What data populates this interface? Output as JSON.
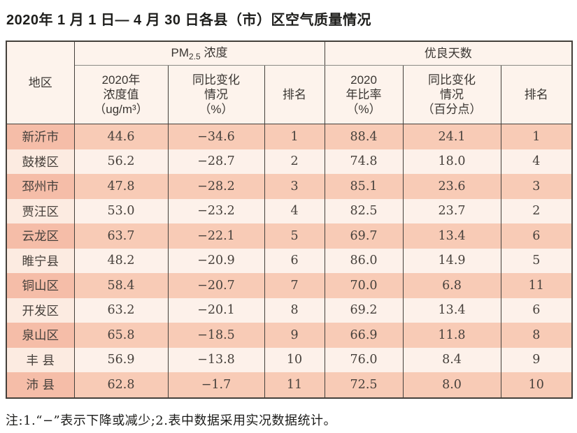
{
  "page": {
    "title": "2020年 1 月 1 日— 4 月 30 日各县（市）区空气质量情况",
    "footnote": "注:1.“−”表示下降或减少;2.表中数据采用实况数据统计。"
  },
  "table": {
    "region_header": "地区",
    "group_headers": {
      "pm25_prefix": "PM",
      "pm25_sub": "2.5",
      "pm25_suffix": " 浓度",
      "good_days": "优良天数"
    },
    "sub_headers": {
      "pm_value": "2020年\n浓度值\n（ug/m³）",
      "pm_change": "同比变化\n情况\n（%）",
      "pm_rank": "排名",
      "good_rate": "2020\n年比率\n（%）",
      "good_change": "同比变化\n情况\n（百分点）",
      "good_rank": "排名"
    },
    "rows": [
      {
        "region": "新沂市",
        "pm_value": "44.6",
        "pm_change": "−34.6",
        "pm_rank": "1",
        "good_rate": "88.4",
        "good_change": "24.1",
        "good_rank": "1"
      },
      {
        "region": "鼓楼区",
        "pm_value": "56.2",
        "pm_change": "−28.7",
        "pm_rank": "2",
        "good_rate": "74.8",
        "good_change": "18.0",
        "good_rank": "4"
      },
      {
        "region": "邳州市",
        "pm_value": "47.8",
        "pm_change": "−28.2",
        "pm_rank": "3",
        "good_rate": "85.1",
        "good_change": "23.6",
        "good_rank": "3"
      },
      {
        "region": "贾汪区",
        "pm_value": "53.0",
        "pm_change": "−23.2",
        "pm_rank": "4",
        "good_rate": "82.5",
        "good_change": "23.7",
        "good_rank": "2"
      },
      {
        "region": "云龙区",
        "pm_value": "63.7",
        "pm_change": "−22.1",
        "pm_rank": "5",
        "good_rate": "69.7",
        "good_change": "13.4",
        "good_rank": "6"
      },
      {
        "region": "睢宁县",
        "pm_value": "48.2",
        "pm_change": "−20.9",
        "pm_rank": "6",
        "good_rate": "86.0",
        "good_change": "14.9",
        "good_rank": "5"
      },
      {
        "region": "铜山区",
        "pm_value": "58.4",
        "pm_change": "−20.7",
        "pm_rank": "7",
        "good_rate": "70.0",
        "good_change": "6.8",
        "good_rank": "11"
      },
      {
        "region": "开发区",
        "pm_value": "63.2",
        "pm_change": "−20.1",
        "pm_rank": "8",
        "good_rate": "69.2",
        "good_change": "13.4",
        "good_rank": "6"
      },
      {
        "region": "泉山区",
        "pm_value": "65.8",
        "pm_change": "−18.5",
        "pm_rank": "9",
        "good_rate": "66.9",
        "good_change": "11.8",
        "good_rank": "8"
      },
      {
        "region": "丰 县",
        "pm_value": "56.9",
        "pm_change": "−13.8",
        "pm_rank": "10",
        "good_rate": "76.0",
        "good_change": "8.4",
        "good_rank": "9"
      },
      {
        "region": "沛 县",
        "pm_value": "62.8",
        "pm_change": "−1.7",
        "pm_rank": "11",
        "good_rate": "72.5",
        "good_change": "8.0",
        "good_rank": "10"
      }
    ],
    "colors": {
      "row_odd": "#f8cbb6",
      "row_even": "#fdf1ea",
      "region_odd": "#f5bda8",
      "region_even": "#fcebe1",
      "header_bg": "#fdf3ec",
      "border": "#44403b"
    }
  },
  "chart_data": {
    "type": "table",
    "title": "2020年1月1日—4月30日各县（市）区空气质量情况",
    "column_groups": [
      "地区",
      "PM2.5浓度",
      "优良天数"
    ],
    "columns": [
      "地区",
      "PM2.5浓度 2020年浓度值（ug/m³）",
      "PM2.5浓度 同比变化情况（%）",
      "PM2.5浓度 排名",
      "优良天数 2020年比率（%）",
      "优良天数 同比变化情况（百分点）",
      "优良天数 排名"
    ],
    "rows": [
      [
        "新沂市",
        44.6,
        -34.6,
        1,
        88.4,
        24.1,
        1
      ],
      [
        "鼓楼区",
        56.2,
        -28.7,
        2,
        74.8,
        18.0,
        4
      ],
      [
        "邳州市",
        47.8,
        -28.2,
        3,
        85.1,
        23.6,
        3
      ],
      [
        "贾汪区",
        53.0,
        -23.2,
        4,
        82.5,
        23.7,
        2
      ],
      [
        "云龙区",
        63.7,
        -22.1,
        5,
        69.7,
        13.4,
        6
      ],
      [
        "睢宁县",
        48.2,
        -20.9,
        6,
        86.0,
        14.9,
        5
      ],
      [
        "铜山区",
        58.4,
        -20.7,
        7,
        70.0,
        6.8,
        11
      ],
      [
        "开发区",
        63.2,
        -20.1,
        8,
        69.2,
        13.4,
        6
      ],
      [
        "泉山区",
        65.8,
        -18.5,
        9,
        66.9,
        11.8,
        8
      ],
      [
        "丰县",
        56.9,
        -13.8,
        10,
        76.0,
        8.4,
        9
      ],
      [
        "沛县",
        62.8,
        -1.7,
        11,
        72.5,
        8.0,
        10
      ]
    ],
    "footnote": "注:1.“−”表示下降或减少;2.表中数据采用实况数据统计。"
  }
}
